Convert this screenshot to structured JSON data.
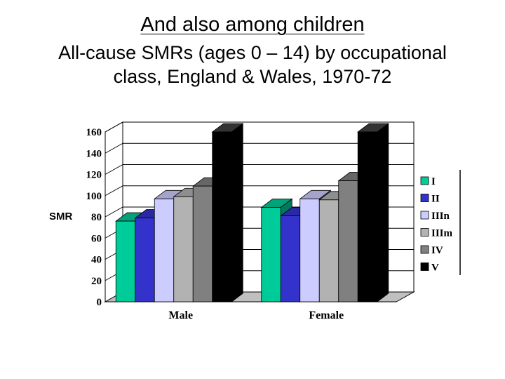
{
  "slide": {
    "title": "And also among children",
    "subtitle_line1": "All-cause SMRs (ages 0 – 14) by occupational",
    "subtitle_line2": "class, England & Wales, 1970-72"
  },
  "chart_data": {
    "type": "bar",
    "style": "3d-clustered",
    "categories": [
      "Male",
      "Female"
    ],
    "ylabel": "SMR",
    "xlabel": "",
    "ylim": [
      0,
      160
    ],
    "yticks": [
      0,
      20,
      40,
      60,
      80,
      100,
      120,
      140,
      160
    ],
    "grid": true,
    "legend_position": "right",
    "series": [
      {
        "name": "I",
        "values": [
          76,
          89
        ],
        "color": "#00cc99"
      },
      {
        "name": "II",
        "values": [
          79,
          81
        ],
        "color": "#3333cc"
      },
      {
        "name": "IIIn",
        "values": [
          97,
          97
        ],
        "color": "#ccccff"
      },
      {
        "name": "IIIm",
        "values": [
          99,
          96
        ],
        "color": "#b2b2b2"
      },
      {
        "name": "IV",
        "values": [
          109,
          114
        ],
        "color": "#808080"
      },
      {
        "name": "V",
        "values": [
          160,
          160
        ],
        "color": "#000000"
      }
    ]
  }
}
